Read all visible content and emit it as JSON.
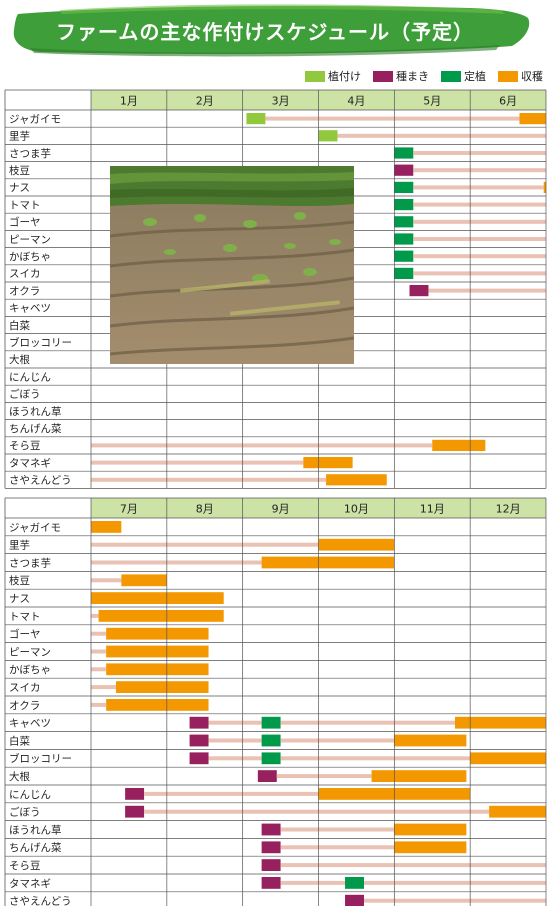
{
  "title": "ファームの主な作付けスケジュール（予定）",
  "colors": {
    "plant": "#92c83e",
    "sow": "#97205e",
    "transplant": "#009a4a",
    "harvest": "#f39800",
    "growth": "#eac2b4",
    "header": "#cde2a5",
    "banner": "#3e9f3a",
    "grid": "#555555"
  },
  "chart_data": {
    "type": "gantt",
    "legend": [
      {
        "key": "plant",
        "label": "植付け"
      },
      {
        "key": "sow",
        "label": "種まき"
      },
      {
        "key": "transplant",
        "label": "定植"
      },
      {
        "key": "harvest",
        "label": "収穫"
      }
    ],
    "tables": [
      {
        "months": [
          "1月",
          "2月",
          "3月",
          "4月",
          "5月",
          "6月"
        ],
        "rows": [
          {
            "crop": "ジャガイモ",
            "events": [
              {
                "k": "plant",
                "s": 3.05,
                "e": 3.3
              },
              {
                "k": "growth",
                "s": 3.3,
                "e": 6.65
              },
              {
                "k": "harvest",
                "s": 6.65,
                "e": 7.0
              }
            ]
          },
          {
            "crop": "里芋",
            "events": [
              {
                "k": "plant",
                "s": 4.0,
                "e": 4.25
              },
              {
                "k": "growth",
                "s": 4.25,
                "e": 7.0
              }
            ]
          },
          {
            "crop": "さつま芋",
            "events": [
              {
                "k": "transplant",
                "s": 5.0,
                "e": 5.25
              },
              {
                "k": "growth",
                "s": 5.25,
                "e": 7.0
              }
            ]
          },
          {
            "crop": "枝豆",
            "events": [
              {
                "k": "sow",
                "s": 5.0,
                "e": 5.25
              },
              {
                "k": "growth",
                "s": 5.25,
                "e": 7.0
              }
            ]
          },
          {
            "crop": "ナス",
            "events": [
              {
                "k": "transplant",
                "s": 5.0,
                "e": 5.25
              },
              {
                "k": "growth",
                "s": 5.25,
                "e": 6.97
              },
              {
                "k": "harvest",
                "s": 6.97,
                "e": 7.0
              }
            ]
          },
          {
            "crop": "トマト",
            "events": [
              {
                "k": "transplant",
                "s": 5.0,
                "e": 5.25
              },
              {
                "k": "growth",
                "s": 5.25,
                "e": 7.0
              }
            ]
          },
          {
            "crop": "ゴーヤ",
            "events": [
              {
                "k": "transplant",
                "s": 5.0,
                "e": 5.25
              },
              {
                "k": "growth",
                "s": 5.25,
                "e": 7.0
              }
            ]
          },
          {
            "crop": "ピーマン",
            "events": [
              {
                "k": "transplant",
                "s": 5.0,
                "e": 5.25
              },
              {
                "k": "growth",
                "s": 5.25,
                "e": 7.0
              }
            ]
          },
          {
            "crop": "かぼちゃ",
            "events": [
              {
                "k": "transplant",
                "s": 5.0,
                "e": 5.25
              },
              {
                "k": "growth",
                "s": 5.25,
                "e": 7.0
              }
            ]
          },
          {
            "crop": "スイカ",
            "events": [
              {
                "k": "transplant",
                "s": 5.0,
                "e": 5.25
              },
              {
                "k": "growth",
                "s": 5.25,
                "e": 7.0
              }
            ]
          },
          {
            "crop": "オクラ",
            "events": [
              {
                "k": "sow",
                "s": 5.2,
                "e": 5.45
              },
              {
                "k": "growth",
                "s": 5.45,
                "e": 7.0
              }
            ]
          },
          {
            "crop": "キャベツ",
            "events": []
          },
          {
            "crop": "白菜",
            "events": []
          },
          {
            "crop": "ブロッコリー",
            "events": []
          },
          {
            "crop": "大根",
            "events": []
          },
          {
            "crop": "にんじん",
            "events": []
          },
          {
            "crop": "ごぼう",
            "events": []
          },
          {
            "crop": "ほうれん草",
            "events": []
          },
          {
            "crop": "ちんげん菜",
            "events": []
          },
          {
            "crop": "そら豆",
            "events": [
              {
                "k": "growth",
                "s": 1.0,
                "e": 5.5
              },
              {
                "k": "harvest",
                "s": 5.5,
                "e": 6.2
              }
            ]
          },
          {
            "crop": "タマネギ",
            "events": [
              {
                "k": "growth",
                "s": 1.0,
                "e": 3.8
              },
              {
                "k": "harvest",
                "s": 3.8,
                "e": 4.45
              }
            ]
          },
          {
            "crop": "さやえんどう",
            "events": [
              {
                "k": "growth",
                "s": 1.0,
                "e": 4.1
              },
              {
                "k": "harvest",
                "s": 4.1,
                "e": 4.9
              }
            ]
          }
        ]
      },
      {
        "months": [
          "7月",
          "8月",
          "9月",
          "10月",
          "11月",
          "12月"
        ],
        "rows": [
          {
            "crop": "ジャガイモ",
            "events": [
              {
                "k": "harvest",
                "s": 7.0,
                "e": 7.4
              }
            ]
          },
          {
            "crop": "里芋",
            "events": [
              {
                "k": "growth",
                "s": 7.0,
                "e": 10.0
              },
              {
                "k": "harvest",
                "s": 10.0,
                "e": 11.0
              }
            ]
          },
          {
            "crop": "さつま芋",
            "events": [
              {
                "k": "growth",
                "s": 7.0,
                "e": 9.25
              },
              {
                "k": "harvest",
                "s": 9.25,
                "e": 11.0
              }
            ]
          },
          {
            "crop": "枝豆",
            "events": [
              {
                "k": "growth",
                "s": 7.0,
                "e": 7.4
              },
              {
                "k": "harvest",
                "s": 7.4,
                "e": 8.0
              }
            ]
          },
          {
            "crop": "ナス",
            "events": [
              {
                "k": "harvest",
                "s": 7.0,
                "e": 8.75
              }
            ]
          },
          {
            "crop": "トマト",
            "events": [
              {
                "k": "growth",
                "s": 7.0,
                "e": 7.1
              },
              {
                "k": "harvest",
                "s": 7.1,
                "e": 8.75
              }
            ]
          },
          {
            "crop": "ゴーヤ",
            "events": [
              {
                "k": "growth",
                "s": 7.0,
                "e": 7.2
              },
              {
                "k": "harvest",
                "s": 7.2,
                "e": 8.55
              }
            ]
          },
          {
            "crop": "ピーマン",
            "events": [
              {
                "k": "growth",
                "s": 7.0,
                "e": 7.2
              },
              {
                "k": "harvest",
                "s": 7.2,
                "e": 8.55
              }
            ]
          },
          {
            "crop": "かぼちゃ",
            "events": [
              {
                "k": "growth",
                "s": 7.0,
                "e": 7.2
              },
              {
                "k": "harvest",
                "s": 7.2,
                "e": 8.55
              }
            ]
          },
          {
            "crop": "スイカ",
            "events": [
              {
                "k": "growth",
                "s": 7.0,
                "e": 7.33
              },
              {
                "k": "harvest",
                "s": 7.33,
                "e": 8.55
              }
            ]
          },
          {
            "crop": "オクラ",
            "events": [
              {
                "k": "growth",
                "s": 7.0,
                "e": 7.2
              },
              {
                "k": "harvest",
                "s": 7.2,
                "e": 8.55
              }
            ]
          },
          {
            "crop": "キャベツ",
            "events": [
              {
                "k": "sow",
                "s": 8.3,
                "e": 8.55
              },
              {
                "k": "growth",
                "s": 8.55,
                "e": 9.25
              },
              {
                "k": "transplant",
                "s": 9.25,
                "e": 9.5
              },
              {
                "k": "growth",
                "s": 9.5,
                "e": 11.8
              },
              {
                "k": "harvest",
                "s": 11.8,
                "e": 13.0
              }
            ]
          },
          {
            "crop": "白菜",
            "events": [
              {
                "k": "sow",
                "s": 8.3,
                "e": 8.55
              },
              {
                "k": "growth",
                "s": 8.55,
                "e": 9.25
              },
              {
                "k": "transplant",
                "s": 9.25,
                "e": 9.5
              },
              {
                "k": "growth",
                "s": 9.5,
                "e": 11.0
              },
              {
                "k": "harvest",
                "s": 11.0,
                "e": 11.95
              }
            ]
          },
          {
            "crop": "ブロッコリー",
            "events": [
              {
                "k": "sow",
                "s": 8.3,
                "e": 8.55
              },
              {
                "k": "growth",
                "s": 8.55,
                "e": 9.25
              },
              {
                "k": "transplant",
                "s": 9.25,
                "e": 9.5
              },
              {
                "k": "growth",
                "s": 9.5,
                "e": 12.0
              },
              {
                "k": "harvest",
                "s": 12.0,
                "e": 13.0
              }
            ]
          },
          {
            "crop": "大根",
            "events": [
              {
                "k": "sow",
                "s": 9.2,
                "e": 9.45
              },
              {
                "k": "growth",
                "s": 9.45,
                "e": 10.7
              },
              {
                "k": "harvest",
                "s": 10.7,
                "e": 11.95
              }
            ]
          },
          {
            "crop": "にんじん",
            "events": [
              {
                "k": "sow",
                "s": 7.45,
                "e": 7.7
              },
              {
                "k": "growth",
                "s": 7.7,
                "e": 10.0
              },
              {
                "k": "harvest",
                "s": 10.0,
                "e": 12.0
              }
            ]
          },
          {
            "crop": "ごぼう",
            "events": [
              {
                "k": "sow",
                "s": 7.45,
                "e": 7.7
              },
              {
                "k": "growth",
                "s": 7.7,
                "e": 12.25
              },
              {
                "k": "harvest",
                "s": 12.25,
                "e": 13.0
              }
            ]
          },
          {
            "crop": "ほうれん草",
            "events": [
              {
                "k": "sow",
                "s": 9.25,
                "e": 9.5
              },
              {
                "k": "growth",
                "s": 9.5,
                "e": 11.0
              },
              {
                "k": "harvest",
                "s": 11.0,
                "e": 11.95
              }
            ]
          },
          {
            "crop": "ちんげん菜",
            "events": [
              {
                "k": "sow",
                "s": 9.25,
                "e": 9.5
              },
              {
                "k": "growth",
                "s": 9.5,
                "e": 11.0
              },
              {
                "k": "harvest",
                "s": 11.0,
                "e": 11.95
              }
            ]
          },
          {
            "crop": "そら豆",
            "events": [
              {
                "k": "sow",
                "s": 9.25,
                "e": 9.5
              },
              {
                "k": "growth",
                "s": 9.5,
                "e": 13.0
              }
            ]
          },
          {
            "crop": "タマネギ",
            "events": [
              {
                "k": "sow",
                "s": 9.25,
                "e": 9.5
              },
              {
                "k": "growth",
                "s": 9.5,
                "e": 10.35
              },
              {
                "k": "transplant",
                "s": 10.35,
                "e": 10.6
              },
              {
                "k": "growth",
                "s": 10.6,
                "e": 13.0
              }
            ]
          },
          {
            "crop": "さやえんどう",
            "events": [
              {
                "k": "sow",
                "s": 10.35,
                "e": 10.6
              },
              {
                "k": "growth",
                "s": 10.6,
                "e": 13.0
              }
            ]
          }
        ]
      }
    ]
  }
}
